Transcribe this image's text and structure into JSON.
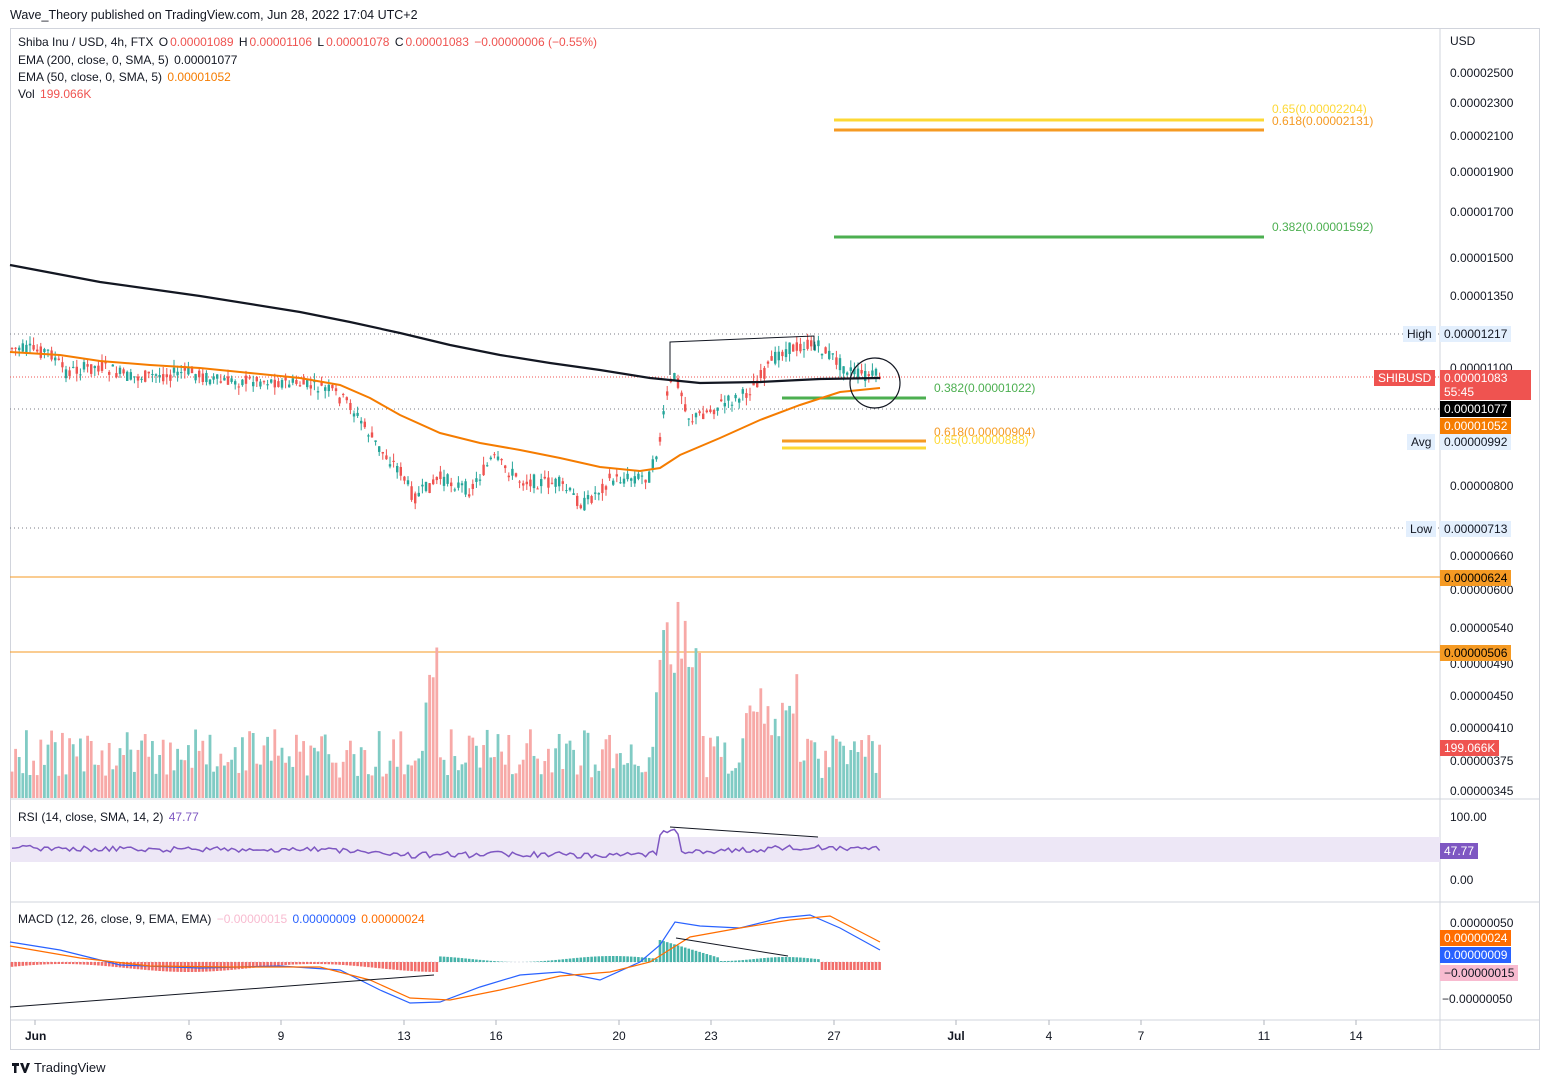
{
  "header": {
    "publisher_line": "Wave_Theory published on TradingView.com, Jun 28, 2022 17:04 UTC+2"
  },
  "legend": {
    "symbol": "Shiba Inu / USD, 4h, FTX",
    "o_label": "O",
    "o_value": "0.00001089",
    "h_label": "H",
    "h_value": "0.00001106",
    "l_label": "L",
    "l_value": "0.00001078",
    "c_label": "C",
    "c_value": "0.00001083",
    "change": "−0.00000006 (−0.55%)",
    "ema200_label": "EMA (200, close, 0, SMA, 5)",
    "ema200_value": "0.00001077",
    "ema50_label": "EMA (50, close, 0, SMA, 5)",
    "ema50_value": "0.00001052",
    "vol_label": "Vol",
    "vol_value": "199.066K",
    "rsi_label": "RSI (14, close, SMA, 14, 2)",
    "rsi_value": "47.77",
    "macd_label": "MACD (12, 26, close, 9, EMA, EMA)",
    "macd_hist": "−0.00000015",
    "macd_line": "0.00000009",
    "macd_signal": "0.00000024"
  },
  "price_axis": {
    "currency": "USD",
    "ticks": [
      "0.00002500",
      "0.00002300",
      "0.00002100",
      "0.00001900",
      "0.00001700",
      "0.00001500",
      "0.00001350",
      "0.00001100",
      "0.00000800",
      "0.00000660",
      "0.00000600",
      "0.00000540",
      "0.00000490",
      "0.00000450",
      "0.00000410",
      "0.00000375",
      "0.00000345"
    ]
  },
  "markers": {
    "high_label": "High",
    "high_value": "0.00001217",
    "low_label": "Low",
    "low_value": "0.00000713",
    "avg_label": "Avg",
    "avg_value": "0.00000992",
    "symbol_badge": "SHIBUSD",
    "last_price": "0.00001083",
    "countdown": "55:45",
    "ema200_badge": "0.00001077",
    "ema50_badge": "0.00001052",
    "level1": "0.00000624",
    "level2": "0.00000506",
    "vol_badge": "199.066K"
  },
  "fib_levels": {
    "upper_065": "0.65(0.00002204)",
    "upper_0618": "0.618(0.00002131)",
    "upper_0382": "0.382(0.00001592)",
    "lower_0382": "0.382(0.00001022)",
    "lower_0618": "0.618(0.00000904)",
    "lower_065": "0.65(0.00000888)"
  },
  "rsi_axis": {
    "top": "100.00",
    "bottom": "0.00",
    "current": "47.77"
  },
  "macd_axis": {
    "top": "0.00000050",
    "signal": "0.00000024",
    "line": "0.00000009",
    "hist": "−0.00000015",
    "bottom": "−0.00000050"
  },
  "time_axis": [
    "Jun",
    "6",
    "9",
    "13",
    "16",
    "20",
    "23",
    "27",
    "Jul",
    "4",
    "7",
    "11",
    "14"
  ],
  "footer": {
    "brand": "TradingView"
  },
  "colors": {
    "up": "#26a69a",
    "down": "#ef5350",
    "ema200": "#131722",
    "ema50": "#f57c00",
    "fib_green": "#4caf50",
    "fib_orange": "#f59a23",
    "fib_yellow": "#ffeb3b",
    "rsi_line": "#7e57c2",
    "rsi_band": "#ede7f6",
    "macd_line": "#2962ff",
    "macd_signal": "#ff6d00"
  },
  "chart_data": {
    "type": "candlestick",
    "title": "Shiba Inu / USD, 4h, FTX",
    "ylabel": "USD",
    "x_labels": [
      "Jun",
      "6",
      "9",
      "13",
      "16",
      "20",
      "23",
      "27",
      "Jul",
      "4",
      "7",
      "11",
      "14"
    ],
    "key_points": [
      {
        "date": "Jun 1",
        "price": 1.21e-05
      },
      {
        "date": "Jun 6",
        "price": 1.15e-05
      },
      {
        "date": "Jun 9",
        "price": 1.13e-05
      },
      {
        "date": "Jun 13",
        "price": 7.5e-06
      },
      {
        "date": "Jun 16",
        "price": 9e-06
      },
      {
        "date": "Jun 18",
        "price": 7.1e-06
      },
      {
        "date": "Jun 20",
        "price": 8e-06
      },
      {
        "date": "Jun 21",
        "price": 1.2e-05
      },
      {
        "date": "Jun 23",
        "price": 1.02e-05
      },
      {
        "date": "Jun 26",
        "price": 1.21e-05
      },
      {
        "date": "Jun 28",
        "price": 1.083e-05
      }
    ],
    "ema200": 1.077e-05,
    "ema50": 1.052e-05,
    "high": 1.217e-05,
    "low": 7.13e-06,
    "avg": 9.92e-06
  }
}
